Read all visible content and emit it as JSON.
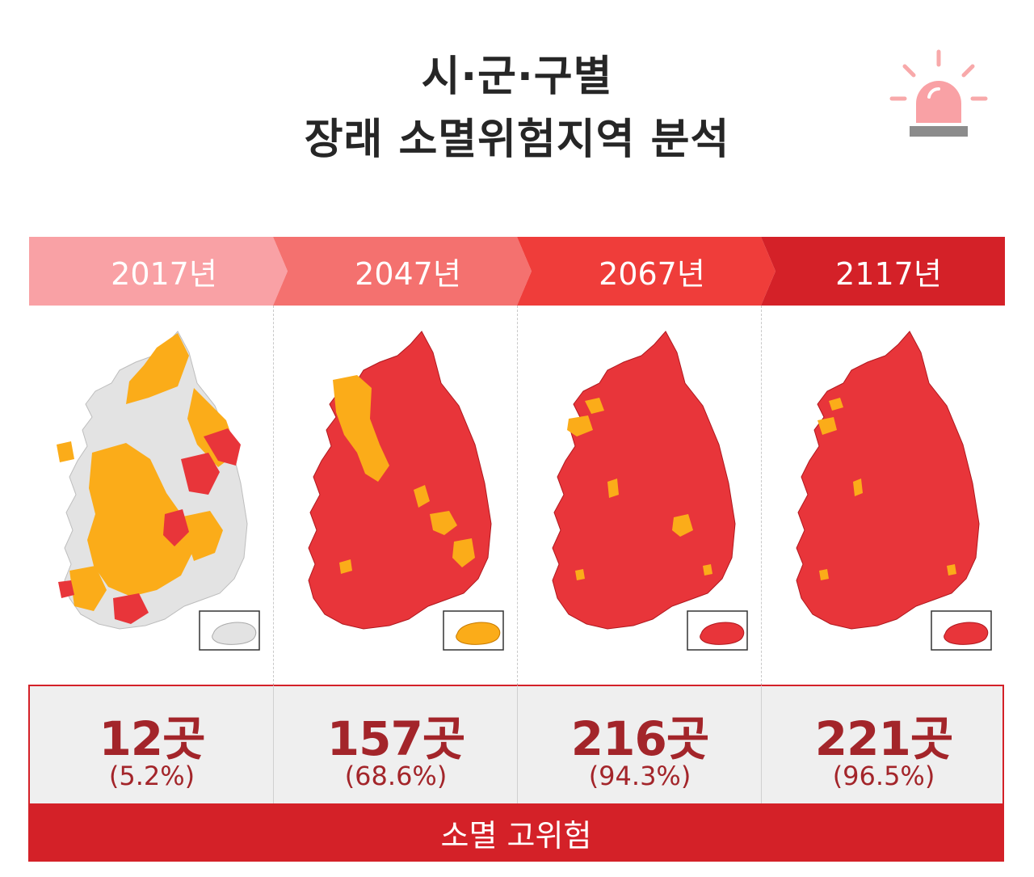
{
  "title": {
    "line1": "시·군·구별",
    "line2": "장래 소멸위험지역 분석"
  },
  "icon": "siren-icon",
  "colors": {
    "year_bands": [
      "#f9a1a5",
      "#f4716f",
      "#ef3d3a",
      "#d42128"
    ],
    "risk_high": "#e8353a",
    "risk_mid": "#fbac19",
    "risk_low": "#e3e3e3",
    "accent": "#d42128",
    "count_text": "#a3252a"
  },
  "periods": [
    {
      "year": "2017년",
      "count": "12곳",
      "percent": "(5.2%)"
    },
    {
      "year": "2047년",
      "count": "157곳",
      "percent": "(68.6%)"
    },
    {
      "year": "2067년",
      "count": "216곳",
      "percent": "(94.3%)"
    },
    {
      "year": "2117년",
      "count": "221곳",
      "percent": "(96.5%)"
    }
  ],
  "footer": {
    "label": "소멸 고위험"
  }
}
